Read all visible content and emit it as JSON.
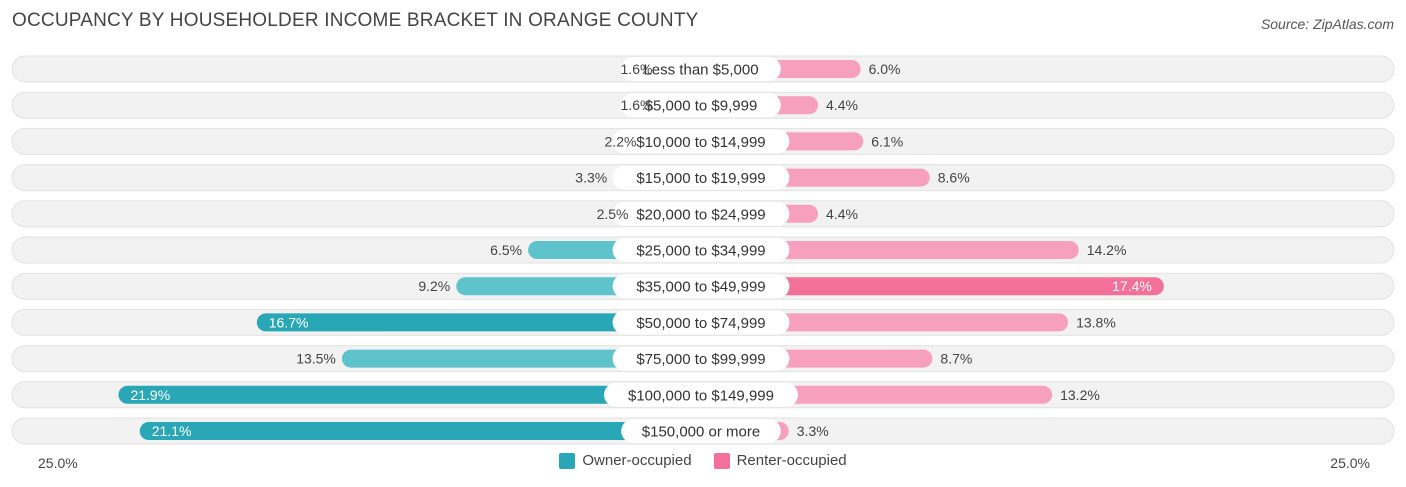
{
  "title": "OCCUPANCY BY HOUSEHOLDER INCOME BRACKET IN ORANGE COUNTY",
  "source": "Source: ZipAtlas.com",
  "axis": {
    "left_label": "25.0%",
    "right_label": "25.0%"
  },
  "legend": {
    "owner": "Owner-occupied",
    "renter": "Renter-occupied"
  },
  "colors": {
    "owner": "#5fc3cc",
    "owner_dark": "#2aa7b6",
    "renter": "#f6a0bd",
    "renter_dark": "#f2709a",
    "row_bg": "#f2f2f2"
  },
  "chart_data": {
    "type": "bar",
    "orientation": "diverging-horizontal",
    "title": "OCCUPANCY BY HOUSEHOLDER INCOME BRACKET IN ORANGE COUNTY",
    "xlim": [
      -25,
      25
    ],
    "categories": [
      "Less than $5,000",
      "$5,000 to $9,999",
      "$10,000 to $14,999",
      "$15,000 to $19,999",
      "$20,000 to $24,999",
      "$25,000 to $34,999",
      "$35,000 to $49,999",
      "$50,000 to $74,999",
      "$75,000 to $99,999",
      "$100,000 to $149,999",
      "$150,000 or more"
    ],
    "series": [
      {
        "name": "Owner-occupied",
        "values": [
          1.6,
          1.6,
          2.2,
          3.3,
          2.5,
          6.5,
          9.2,
          16.7,
          13.5,
          21.9,
          21.1
        ]
      },
      {
        "name": "Renter-occupied",
        "values": [
          6.0,
          4.4,
          6.1,
          8.6,
          4.4,
          14.2,
          17.4,
          13.8,
          8.7,
          13.2,
          3.3
        ]
      }
    ],
    "owner_labels": [
      "1.6%",
      "1.6%",
      "2.2%",
      "3.3%",
      "2.5%",
      "6.5%",
      "9.2%",
      "16.7%",
      "13.5%",
      "21.9%",
      "21.1%"
    ],
    "renter_labels": [
      "6.0%",
      "4.4%",
      "6.1%",
      "8.6%",
      "4.4%",
      "14.2%",
      "17.4%",
      "13.8%",
      "8.7%",
      "13.2%",
      "3.3%"
    ]
  }
}
